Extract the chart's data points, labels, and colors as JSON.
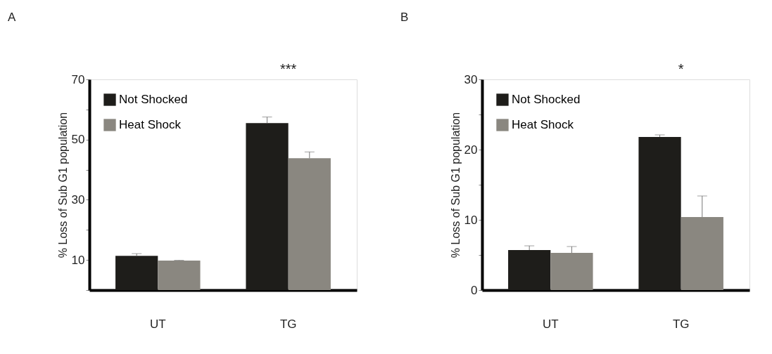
{
  "chart_data": [
    {
      "type": "bar",
      "title": "A",
      "ylabel": "% Loss of Sub G1 population",
      "categories": [
        "UT",
        "TG"
      ],
      "series": [
        {
          "name": "Not Shocked",
          "color": "#1e1d1a",
          "values": [
            11.4,
            55.5
          ],
          "errors": [
            [
              11.4,
              12.1
            ],
            [
              55.5,
              57.5
            ]
          ]
        },
        {
          "name": "Heat Shock",
          "color": "#8a8780",
          "values": [
            9.8,
            43.8
          ],
          "errors": [
            [
              9.8,
              9.9
            ],
            [
              43.8,
              45.9
            ]
          ]
        }
      ],
      "ylim": [
        0,
        70
      ],
      "yticks": [
        {
          "value": 0,
          "label": null
        },
        10,
        {
          "value": 20,
          "label": null
        },
        30,
        {
          "value": 40,
          "label": null
        },
        50,
        {
          "value": 60,
          "label": null
        },
        70
      ],
      "annotations": [
        "***"
      ],
      "legend": "top left",
      "grid": false
    },
    {
      "type": "bar",
      "title": "B",
      "ylabel": "% Loss of Sub G1 population",
      "categories": [
        "UT",
        "TG"
      ],
      "series": [
        {
          "name": "Not Shocked",
          "color": "#1e1d1a",
          "values": [
            5.7,
            21.8
          ],
          "errors": [
            [
              5.7,
              6.3
            ],
            [
              21.8,
              22.1
            ]
          ]
        },
        {
          "name": "Heat Shock",
          "color": "#8a8780",
          "values": [
            5.3,
            10.4
          ],
          "errors": [
            [
              5.3,
              6.2
            ],
            [
              10.4,
              13.4
            ]
          ]
        }
      ],
      "ylim": [
        0,
        30
      ],
      "yticks": [
        0,
        {
          "value": 5,
          "label": null
        },
        10,
        {
          "value": 15,
          "label": null
        },
        20,
        {
          "value": 25,
          "label": null
        },
        30
      ],
      "annotations": [
        "*"
      ],
      "legend": "top left",
      "grid": false
    }
  ]
}
